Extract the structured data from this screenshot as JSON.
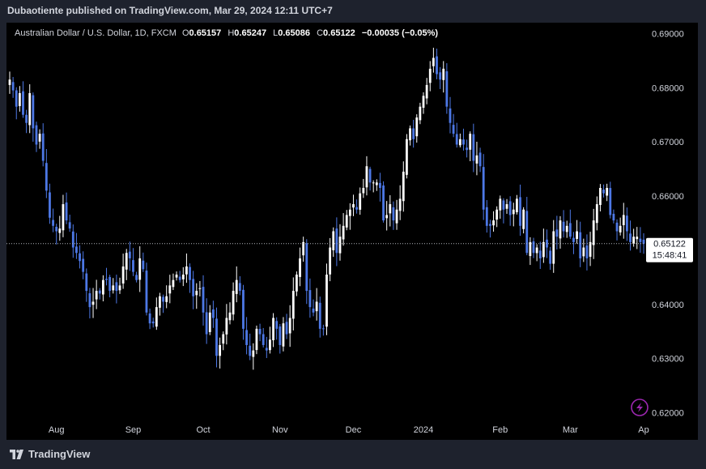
{
  "header": {
    "publish_line": "Dubaotiente published on TradingView.com, Mar 29, 2024 12:11 UTC+7"
  },
  "legend": {
    "symbol": "Australian Dollar / U.S. Dollar, 1D, FXCM",
    "o_label": "O",
    "o_value": "0.65157",
    "h_label": "H",
    "h_value": "0.65247",
    "l_label": "L",
    "l_value": "0.65086",
    "c_label": "C",
    "c_value": "0.65122",
    "change": "−0.00035 (−0.05%)"
  },
  "price_tag": {
    "price": "0.65122",
    "countdown": "15:48:41"
  },
  "footer": {
    "brand": "TradingView"
  },
  "colors": {
    "up": "#ffffff",
    "down": "#4d78e6",
    "background": "#000000",
    "axis_text": "#d1d4dc",
    "accent": "#9c27b0"
  },
  "icons": {
    "logo": "tradingview-logo-icon",
    "flash": "lightning-icon"
  },
  "chart_data": {
    "type": "candlestick",
    "symbol": "AUDUSD",
    "interval": "1D",
    "ylim": [
      0.615,
      0.692
    ],
    "y_ticks": [
      "0.69000",
      "0.68000",
      "0.67000",
      "0.66000",
      "0.65000",
      "0.64000",
      "0.63000",
      "0.62000"
    ],
    "x_ticks": [
      {
        "label": "Aug",
        "index": 14
      },
      {
        "label": "Sep",
        "index": 37
      },
      {
        "label": "Oct",
        "index": 58
      },
      {
        "label": "Nov",
        "index": 81
      },
      {
        "label": "Dec",
        "index": 103
      },
      {
        "label": "2024",
        "index": 124
      },
      {
        "label": "Feb",
        "index": 147
      },
      {
        "label": "Mar",
        "index": 168
      },
      {
        "label": "Ap",
        "index": 190
      }
    ],
    "last_price": 0.65122,
    "closes": [
      0.6815,
      0.6795,
      0.6765,
      0.679,
      0.675,
      0.6735,
      0.679,
      0.6725,
      0.6695,
      0.6715,
      0.6665,
      0.661,
      0.656,
      0.6545,
      0.6535,
      0.654,
      0.6585,
      0.6555,
      0.654,
      0.6505,
      0.6495,
      0.648,
      0.646,
      0.6425,
      0.6395,
      0.6405,
      0.6425,
      0.642,
      0.6445,
      0.6445,
      0.6425,
      0.6435,
      0.6425,
      0.6435,
      0.647,
      0.6495,
      0.6485,
      0.646,
      0.6445,
      0.6485,
      0.6465,
      0.6385,
      0.6365,
      0.6365,
      0.6395,
      0.6415,
      0.6405,
      0.6415,
      0.6435,
      0.6445,
      0.6455,
      0.6445,
      0.6455,
      0.647,
      0.6445,
      0.6415,
      0.6425,
      0.643,
      0.6385,
      0.6345,
      0.6385,
      0.6375,
      0.6305,
      0.6325,
      0.6345,
      0.6375,
      0.6385,
      0.6425,
      0.6445,
      0.6425,
      0.6355,
      0.6325,
      0.6305,
      0.6315,
      0.6355,
      0.6345,
      0.6325,
      0.6315,
      0.6335,
      0.6375,
      0.6355,
      0.6325,
      0.6365,
      0.6345,
      0.6375,
      0.6425,
      0.6455,
      0.6485,
      0.6515,
      0.6425,
      0.6395,
      0.6385,
      0.6405,
      0.6355,
      0.6355,
      0.6455,
      0.6505,
      0.6535,
      0.6495,
      0.6525,
      0.6545,
      0.6565,
      0.6575,
      0.6585,
      0.6575,
      0.6605,
      0.6615,
      0.6655,
      0.6625,
      0.6625,
      0.6625,
      0.6615,
      0.6555,
      0.6565,
      0.6585,
      0.6555,
      0.6575,
      0.6595,
      0.6645,
      0.6705,
      0.6725,
      0.6705,
      0.6745,
      0.6765,
      0.6785,
      0.6805,
      0.6835,
      0.6855,
      0.6825,
      0.6815,
      0.6835,
      0.6765,
      0.6735,
      0.6715,
      0.6695,
      0.6705,
      0.6695,
      0.6685,
      0.6715,
      0.6665,
      0.6675,
      0.6655,
      0.6575,
      0.6545,
      0.6545,
      0.6555,
      0.6575,
      0.6595,
      0.6575,
      0.6585,
      0.6565,
      0.6575,
      0.6595,
      0.6545,
      0.6575,
      0.6495,
      0.6515,
      0.6495,
      0.6505,
      0.6485,
      0.6515,
      0.6505,
      0.6475,
      0.6535,
      0.6525,
      0.6555,
      0.6535,
      0.6545,
      0.6525,
      0.6515,
      0.6535,
      0.6485,
      0.6505,
      0.6485,
      0.6515,
      0.6555,
      0.6585,
      0.6615,
      0.6605,
      0.6615,
      0.6565,
      0.6555,
      0.6535,
      0.6545,
      0.6565,
      0.6535,
      0.6515,
      0.6525,
      0.6525,
      0.6515,
      0.6512
    ]
  }
}
